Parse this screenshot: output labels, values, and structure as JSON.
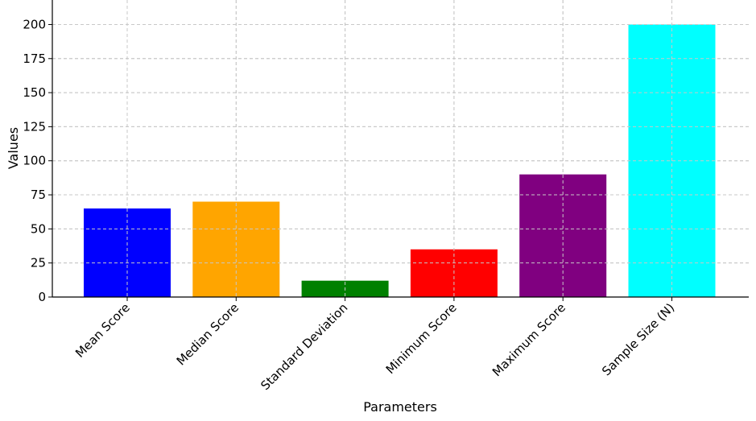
{
  "chart_data": {
    "type": "bar",
    "title": "",
    "xlabel": "Parameters",
    "ylabel": "Values",
    "categories": [
      "Mean Score",
      "Median Score",
      "Standard Deviation",
      "Minimum Score",
      "Maximum Score",
      "Sample Size (N)"
    ],
    "values": [
      65,
      70,
      12,
      35,
      90,
      200
    ],
    "colors": [
      "#0000ff",
      "#ffa500",
      "#008000",
      "#ff0000",
      "#800080",
      "#00ffff"
    ],
    "ylim": [
      0,
      218
    ],
    "yticks": [
      0,
      25,
      50,
      75,
      100,
      125,
      150,
      175,
      200
    ],
    "grid": true,
    "legend": false
  }
}
